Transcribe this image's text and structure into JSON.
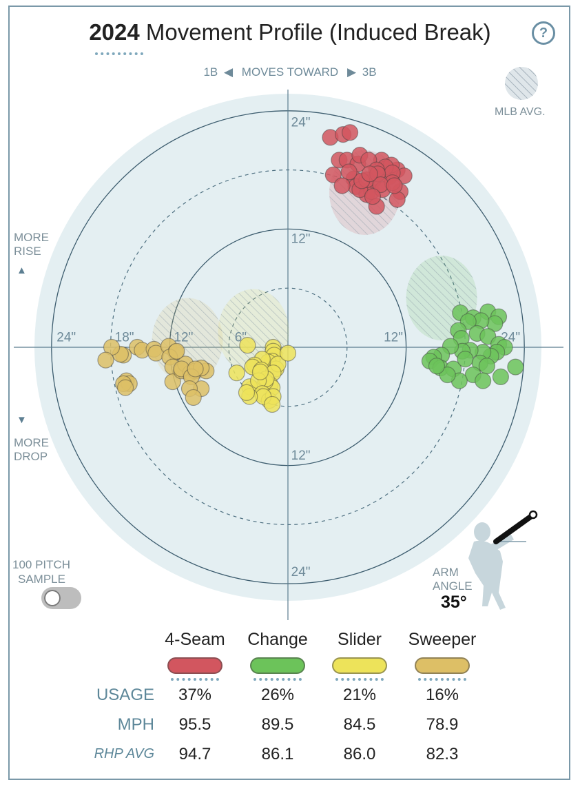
{
  "header": {
    "year": "2024",
    "title": "Movement Profile (Induced Break)",
    "help": "?"
  },
  "direction": {
    "left": "1B",
    "middle": "MOVES TOWARD",
    "right": "3B",
    "left_arrow": "◀",
    "right_arrow": "▶"
  },
  "legend_avg": "MLB AVG.",
  "side": {
    "rise_1": "MORE",
    "rise_2": "RISE",
    "rise_arrow": "▲",
    "drop_arrow": "▼",
    "drop_1": "MORE",
    "drop_2": "DROP"
  },
  "sample": {
    "line1": "100 PITCH",
    "line2": "SAMPLE"
  },
  "arm_angle": {
    "line1": "ARM",
    "line2": "ANGLE",
    "value": "35°"
  },
  "stats": {
    "usage_label": "USAGE",
    "mph_label": "MPH",
    "rhp_label": "RHP AVG"
  },
  "chart_data": {
    "type": "scatter",
    "x_unit": "inches horizontal break (negative = toward 1B, positive = toward 3B)",
    "y_unit": "inches induced vertical break",
    "xlim": [
      -24,
      24
    ],
    "ylim": [
      -24,
      24
    ],
    "ring_labels": [
      "24\"",
      "18\"",
      "12\"",
      "6\"",
      "12\"",
      "24\"",
      "24\"",
      "12\"",
      "12\"",
      "24\""
    ],
    "series": [
      {
        "name": "4-Seam",
        "color": "#d2565f",
        "usage": "37%",
        "mph": "95.5",
        "rhp_avg": "94.7",
        "avg_center": [
          7.8,
          15.7
        ],
        "points": [
          [
            4.3,
            21.3
          ],
          [
            5.2,
            19.0
          ],
          [
            5.6,
            21.6
          ],
          [
            4.6,
            17.5
          ],
          [
            6.0,
            19.0
          ],
          [
            6.7,
            17.1
          ],
          [
            7.1,
            18.6
          ],
          [
            7.3,
            19.5
          ],
          [
            6.9,
            16.3
          ],
          [
            8.0,
            15.5
          ],
          [
            8.5,
            15.8
          ],
          [
            8.7,
            17.0
          ],
          [
            9.5,
            19.0
          ],
          [
            9.9,
            18.1
          ],
          [
            10.3,
            17.3
          ],
          [
            11.1,
            18.0
          ],
          [
            10.5,
            18.5
          ],
          [
            9.9,
            18.3
          ],
          [
            11.4,
            15.8
          ],
          [
            11.8,
            17.4
          ],
          [
            6.3,
            21.8
          ],
          [
            8.2,
            19.0
          ],
          [
            9.0,
            18.0
          ],
          [
            10.6,
            17.7
          ],
          [
            7.3,
            16.0
          ],
          [
            8.0,
            17.0
          ],
          [
            9.1,
            17.6
          ],
          [
            9.6,
            16.0
          ],
          [
            10.6,
            16.7
          ],
          [
            11.1,
            15.0
          ],
          [
            7.5,
            16.9
          ],
          [
            9.4,
            16.5
          ],
          [
            8.3,
            17.6
          ],
          [
            10.8,
            16.4
          ],
          [
            6.2,
            17.8
          ],
          [
            9.0,
            14.3
          ],
          [
            8.6,
            15.3
          ],
          [
            5.5,
            16.4
          ]
        ]
      },
      {
        "name": "Change",
        "color": "#6cc35a",
        "usage": "26%",
        "mph": "89.5",
        "rhp_avg": "86.1",
        "avg_center": [
          15.6,
          5.0
        ],
        "points": [
          [
            17.5,
            3.5
          ],
          [
            18.8,
            3.0
          ],
          [
            20.3,
            3.6
          ],
          [
            21.4,
            3.1
          ],
          [
            21.0,
            2.4
          ],
          [
            19.6,
            2.7
          ],
          [
            18.3,
            2.6
          ],
          [
            17.3,
            1.7
          ],
          [
            17.6,
            0.9
          ],
          [
            19.2,
            1.4
          ],
          [
            20.3,
            1.1
          ],
          [
            21.4,
            0.3
          ],
          [
            22.0,
            0.0
          ],
          [
            21.2,
            -0.5
          ],
          [
            20.6,
            -0.9
          ],
          [
            19.8,
            -0.5
          ],
          [
            18.5,
            -0.3
          ],
          [
            17.7,
            -0.4
          ],
          [
            16.5,
            0.1
          ],
          [
            15.6,
            -0.8
          ],
          [
            14.8,
            -1.0
          ],
          [
            14.4,
            -1.4
          ],
          [
            15.5,
            -2.1
          ],
          [
            16.8,
            -2.2
          ],
          [
            18.0,
            -1.2
          ],
          [
            19.5,
            -1.6
          ],
          [
            20.2,
            -1.9
          ],
          [
            18.8,
            -2.8
          ],
          [
            17.4,
            -3.4
          ],
          [
            16.2,
            -2.8
          ],
          [
            15.1,
            -1.9
          ],
          [
            19.8,
            -3.4
          ],
          [
            21.6,
            -3.0
          ],
          [
            23.1,
            -2.0
          ]
        ]
      },
      {
        "name": "Slider",
        "color": "#ede35a",
        "usage": "21%",
        "mph": "84.5",
        "rhp_avg": "86.0",
        "avg_center": [
          -3.5,
          1.6
        ],
        "points": [
          [
            -4.1,
            0.2
          ],
          [
            -1.5,
            0.0
          ],
          [
            -1.5,
            -0.4
          ],
          [
            -1.4,
            -0.8
          ],
          [
            -1.6,
            -1.4
          ],
          [
            -2.0,
            -1.5
          ],
          [
            -2.6,
            -1.2
          ],
          [
            -3.4,
            -1.8
          ],
          [
            -3.6,
            -2.0
          ],
          [
            -2.7,
            -2.3
          ],
          [
            -1.2,
            -2.2
          ],
          [
            -1.0,
            -1.7
          ],
          [
            0.0,
            -0.6
          ],
          [
            -1.5,
            -2.6
          ],
          [
            -1.8,
            -3.8
          ],
          [
            -1.6,
            -4.1
          ],
          [
            -2.3,
            -3.5
          ],
          [
            -3.6,
            -4.2
          ],
          [
            -3.9,
            -4.0
          ],
          [
            -5.2,
            -2.6
          ],
          [
            -2.2,
            -3.2
          ],
          [
            -3.0,
            -3.4
          ],
          [
            -2.8,
            -2.5
          ],
          [
            -2.6,
            -4.7
          ],
          [
            -1.9,
            -5.4
          ],
          [
            -1.5,
            -5.0
          ],
          [
            -2.5,
            -5.0
          ],
          [
            -3.9,
            -5.0
          ],
          [
            -4.2,
            -4.6
          ],
          [
            -1.6,
            -5.8
          ]
        ]
      },
      {
        "name": "Sweeper",
        "color": "#ddbf66",
        "usage": "16%",
        "mph": "78.9",
        "rhp_avg": "82.3",
        "avg_center": [
          -10.2,
          0.7
        ],
        "points": [
          [
            -15.3,
            0.0
          ],
          [
            -14.8,
            -0.3
          ],
          [
            -13.6,
            -0.2
          ],
          [
            -13.4,
            -0.6
          ],
          [
            -12.1,
            0.1
          ],
          [
            -11.4,
            -0.5
          ],
          [
            -12.0,
            -1.0
          ],
          [
            -11.7,
            -2.0
          ],
          [
            -11.7,
            -3.5
          ],
          [
            -10.8,
            -2.4
          ],
          [
            -10.4,
            -1.7
          ],
          [
            -9.9,
            -2.6
          ],
          [
            -9.4,
            -2.4
          ],
          [
            -8.3,
            -2.4
          ],
          [
            -8.8,
            -2.1
          ],
          [
            -8.8,
            -4.2
          ],
          [
            -10.8,
            -2.2
          ],
          [
            -9.8,
            -3.0
          ],
          [
            -16.7,
            -0.8
          ],
          [
            -17.0,
            -0.7
          ],
          [
            -17.9,
            0.0
          ],
          [
            -18.5,
            -1.3
          ],
          [
            -16.4,
            -3.4
          ],
          [
            -16.1,
            -3.7
          ],
          [
            -16.7,
            -3.7
          ],
          [
            -16.5,
            -4.1
          ],
          [
            -9.4,
            -2.2
          ],
          [
            -11.3,
            -0.4
          ],
          [
            -10.0,
            -4.2
          ],
          [
            -9.6,
            -5.1
          ]
        ]
      }
    ]
  },
  "colors": {
    "bg_circle": "#e4eff2",
    "ring": "#3c5c6e",
    "axis": "#5b7c8e",
    "label": "#6e8a99",
    "stats_label": "#5d8799"
  }
}
